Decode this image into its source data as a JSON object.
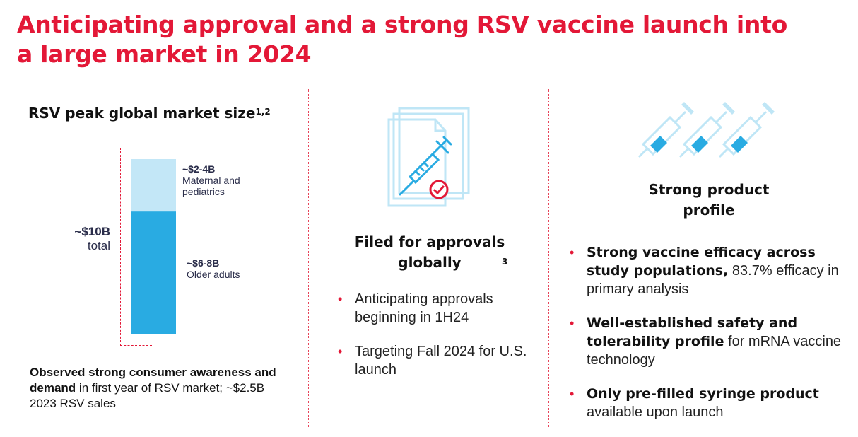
{
  "title": "Anticipating approval and a strong RSV vaccine launch into a large market in 2024",
  "colors": {
    "accent": "#e31837",
    "bar_dark": "#29abe2",
    "bar_light": "#c3e7f7",
    "icon_light": "#bfe6f6"
  },
  "left": {
    "heading": "RSV peak global market size",
    "heading_sup": "1,2",
    "total_value": "~$10B",
    "total_label": "total",
    "segments": [
      {
        "value": "~$2-4B",
        "label": "Maternal and pediatrics"
      },
      {
        "value": "~$6-8B",
        "label": "Older adults"
      }
    ],
    "footer_bold": "Observed strong consumer awareness and demand",
    "footer_rest": " in first year of RSV market;  ~$2.5B 2023 RSV sales"
  },
  "chart_data": {
    "type": "bar",
    "stacked": true,
    "categories": [
      "RSV peak global market"
    ],
    "series": [
      {
        "name": "Older adults",
        "values": [
          7
        ],
        "range": "~$6-8B"
      },
      {
        "name": "Maternal and pediatrics",
        "values": [
          3
        ],
        "range": "~$2-4B"
      }
    ],
    "total": "~$10B",
    "unit": "$B"
  },
  "middle": {
    "icon": "document-syringe-check-icon",
    "heading": "Filed for approvals globally",
    "heading_sup": "3",
    "bullets": [
      "Anticipating approvals beginning in 1H24",
      "Targeting Fall 2024 for U.S. launch"
    ]
  },
  "right": {
    "icon": "syringes-icon",
    "heading": "Strong product profile",
    "bullets": [
      {
        "bold": "Strong vaccine efficacy across study populations,",
        "rest": " 83.7% efficacy in primary analysis"
      },
      {
        "bold": "Well-established safety and tolerability profile",
        "rest": " for mRNA vaccine technology"
      },
      {
        "bold": "Only pre-filled syringe product",
        "rest": " available upon launch"
      }
    ]
  }
}
